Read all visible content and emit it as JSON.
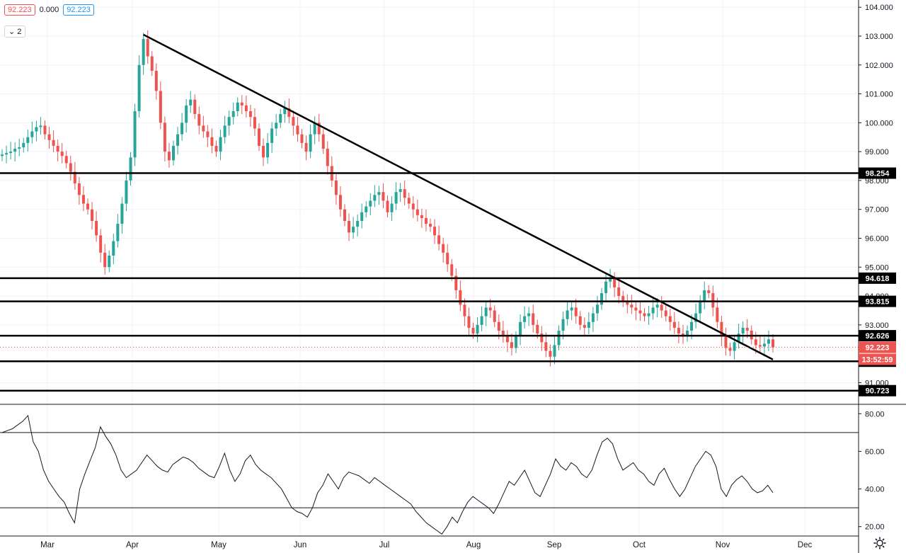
{
  "legend": {
    "value1": "92.223",
    "value2": "0.000",
    "value3": "92.223"
  },
  "collapse_label": "2",
  "chart_data": {
    "type": "candlestick",
    "price_axis": {
      "ylim": [
        90.25,
        104.25
      ],
      "ticks": [
        "104.000",
        "103.000",
        "102.000",
        "101.000",
        "100.000",
        "99.000",
        "98.000",
        "97.000",
        "96.000",
        "95.000",
        "94.000",
        "93.000",
        "91.000"
      ]
    },
    "x_labels": [
      "Mar",
      "Apr",
      "May",
      "Jun",
      "Jul",
      "Aug",
      "Sep",
      "Oct",
      "Nov",
      "Dec"
    ],
    "series": {
      "close": [
        98.9,
        98.95,
        99.0,
        99.1,
        99.15,
        99.3,
        99.5,
        99.7,
        99.85,
        99.9,
        99.6,
        99.4,
        99.2,
        99.0,
        98.85,
        98.6,
        98.3,
        97.9,
        97.5,
        97.2,
        97.0,
        96.6,
        96.1,
        95.5,
        95.0,
        95.4,
        95.9,
        96.5,
        97.2,
        98.0,
        98.8,
        100.4,
        102.0,
        102.9,
        102.3,
        101.8,
        101.1,
        100.0,
        99.0,
        98.7,
        99.2,
        99.6,
        100.0,
        100.6,
        100.8,
        100.3,
        99.9,
        99.7,
        99.5,
        99.2,
        99.0,
        99.5,
        99.9,
        100.2,
        100.4,
        100.7,
        100.6,
        100.4,
        100.2,
        99.8,
        99.2,
        98.8,
        99.3,
        99.8,
        100.0,
        100.3,
        100.5,
        100.2,
        99.9,
        99.6,
        99.3,
        99.0,
        99.6,
        100.0,
        99.6,
        99.1,
        98.5,
        98.0,
        97.5,
        97.0,
        96.6,
        96.2,
        96.4,
        96.6,
        96.9,
        97.1,
        97.3,
        97.5,
        97.6,
        97.3,
        96.9,
        97.2,
        97.6,
        97.7,
        97.4,
        97.2,
        97.0,
        96.8,
        96.7,
        96.5,
        96.4,
        96.1,
        95.8,
        95.5,
        95.1,
        94.7,
        94.2,
        93.7,
        93.3,
        92.9,
        92.7,
        93.0,
        93.3,
        93.6,
        93.5,
        93.1,
        92.8,
        92.6,
        92.4,
        92.2,
        92.6,
        93.1,
        93.3,
        93.4,
        93.0,
        92.7,
        92.4,
        92.1,
        91.9,
        92.3,
        92.8,
        93.2,
        93.5,
        93.6,
        93.3,
        93.0,
        92.9,
        93.1,
        93.4,
        93.7,
        94.1,
        94.5,
        94.6,
        94.3,
        94.0,
        93.8,
        93.7,
        93.6,
        93.5,
        93.4,
        93.3,
        93.4,
        93.6,
        93.7,
        93.5,
        93.3,
        93.1,
        92.9,
        92.7,
        92.6,
        92.8,
        93.1,
        93.4,
        93.8,
        94.2,
        94.1,
        93.6,
        93.1,
        92.6,
        92.2,
        92.1,
        92.4,
        92.7,
        92.9,
        92.8,
        92.5,
        92.3,
        92.25,
        92.35,
        92.5,
        92.223
      ]
    },
    "rsi": {
      "ylim": [
        15,
        85
      ],
      "ticks": [
        "80.00",
        "60.00",
        "40.00",
        "20.00"
      ],
      "levels": [
        70,
        30
      ],
      "values": [
        70,
        71,
        72,
        74,
        76,
        79,
        65,
        60,
        50,
        44,
        40,
        36,
        33,
        27,
        22,
        40,
        48,
        55,
        62,
        73,
        68,
        64,
        58,
        50,
        46,
        48,
        50,
        54,
        58,
        55,
        52,
        50,
        49,
        53,
        55,
        57,
        56,
        54,
        51,
        49,
        47,
        46,
        52,
        59,
        50,
        44,
        48,
        55,
        58,
        53,
        50,
        48,
        46,
        43,
        40,
        35,
        30,
        28,
        27,
        25,
        30,
        38,
        42,
        48,
        44,
        40,
        46,
        49,
        48,
        47,
        45,
        43,
        46,
        44,
        42,
        40,
        38,
        36,
        34,
        32,
        28,
        25,
        22,
        20,
        18,
        16,
        20,
        25,
        22,
        28,
        33,
        36,
        34,
        32,
        30,
        27,
        32,
        38,
        44,
        42,
        46,
        50,
        44,
        38,
        36,
        42,
        48,
        56,
        52,
        50,
        54,
        52,
        48,
        46,
        50,
        58,
        65,
        67,
        64,
        56,
        50,
        52,
        54,
        50,
        48,
        44,
        42,
        48,
        51,
        45,
        40,
        36,
        40,
        46,
        52,
        56,
        60,
        58,
        52,
        40,
        36,
        42,
        45,
        47,
        44,
        40,
        38,
        39,
        42,
        38
      ]
    },
    "trendline": {
      "from": {
        "date_index": 33,
        "price": 103.05
      },
      "to": {
        "date_index": 180,
        "price": 91.8
      }
    },
    "horizontal_levels": [
      {
        "price": 98.254,
        "label": "98.254"
      },
      {
        "price": 94.618,
        "label": "94.618"
      },
      {
        "price": 93.815,
        "label": "93.815"
      },
      {
        "price": 92.626,
        "label": "92.626"
      },
      {
        "price": 91.741,
        "label": "91.741"
      },
      {
        "price": 90.723,
        "label": "90.723"
      }
    ],
    "current_price": {
      "price": 92.223,
      "label": "92.223",
      "countdown": "13:52:59"
    },
    "colors": {
      "up": "#26a69a",
      "down": "#ef5350",
      "line": "#000000",
      "current": "#ef5350"
    }
  }
}
